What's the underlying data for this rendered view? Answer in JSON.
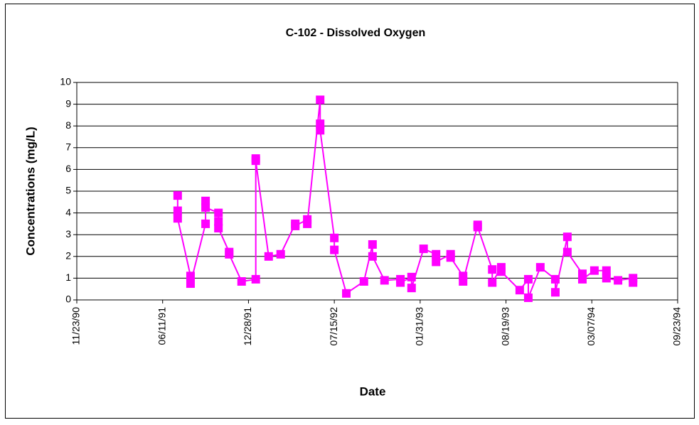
{
  "chart_data": {
    "type": "line",
    "title": "C-102 - Dissolved Oxygen",
    "x_label": "Date",
    "y_label": "Concentrations (mg/L)",
    "color": "#ff00ff",
    "marker": "square",
    "grid": true,
    "xlim": [
      "11/23/90",
      "09/23/94"
    ],
    "xticks": [
      "11/23/90",
      "06/11/91",
      "12/28/91",
      "07/15/92",
      "01/31/93",
      "08/19/93",
      "03/07/94",
      "09/23/94"
    ],
    "ylim": [
      0,
      10
    ],
    "yticks": [
      0,
      1,
      2,
      3,
      4,
      5,
      6,
      7,
      8,
      9,
      10
    ],
    "x": [
      "07/16/91",
      "07/16/91",
      "07/16/91",
      "08/15/91",
      "08/15/91",
      "09/19/91",
      "09/19/91",
      "09/19/91",
      "10/19/91",
      "10/19/91",
      "10/19/91",
      "11/13/91",
      "11/13/91",
      "12/12/91",
      "01/14/92",
      "01/14/92",
      "01/14/92",
      "02/13/92",
      "03/12/92",
      "04/15/92",
      "04/15/92",
      "05/13/92",
      "05/13/92",
      "06/12/92",
      "06/12/92",
      "06/12/92",
      "07/15/92",
      "07/15/92",
      "08/12/92",
      "09/22/92",
      "10/12/92",
      "10/12/92",
      "11/09/92",
      "12/16/92",
      "12/16/92",
      "01/11/93",
      "01/11/93",
      "02/08/93",
      "03/09/93",
      "03/09/93",
      "04/12/93",
      "04/12/93",
      "05/11/93",
      "05/11/93",
      "06/14/93",
      "06/14/93",
      "07/18/93",
      "07/18/93",
      "08/08/93",
      "08/08/93",
      "09/20/93",
      "10/10/93",
      "10/10/93",
      "11/07/93",
      "12/12/93",
      "12/12/93",
      "01/09/94",
      "01/09/94",
      "02/13/94",
      "02/13/94",
      "03/13/94",
      "04/10/94",
      "04/10/94",
      "05/07/94",
      "06/11/94",
      "06/11/94"
    ],
    "values": [
      4.8,
      4.1,
      3.75,
      1.1,
      0.75,
      3.5,
      4.55,
      4.25,
      4.0,
      3.6,
      3.3,
      2.2,
      2.1,
      0.85,
      0.95,
      6.5,
      6.4,
      2.0,
      2.1,
      3.5,
      3.4,
      3.7,
      3.5,
      9.2,
      8.1,
      7.8,
      2.85,
      2.3,
      0.3,
      0.85,
      2.55,
      2.0,
      0.9,
      0.95,
      0.8,
      1.05,
      0.55,
      2.35,
      2.1,
      1.75,
      2.1,
      1.95,
      1.1,
      0.85,
      3.45,
      3.35,
      1.4,
      0.8,
      1.5,
      1.3,
      0.45,
      0.95,
      0.1,
      1.5,
      0.95,
      0.35,
      2.9,
      2.2,
      1.2,
      0.95,
      1.35,
      1.35,
      1.0,
      0.9,
      1.0,
      0.8
    ]
  }
}
